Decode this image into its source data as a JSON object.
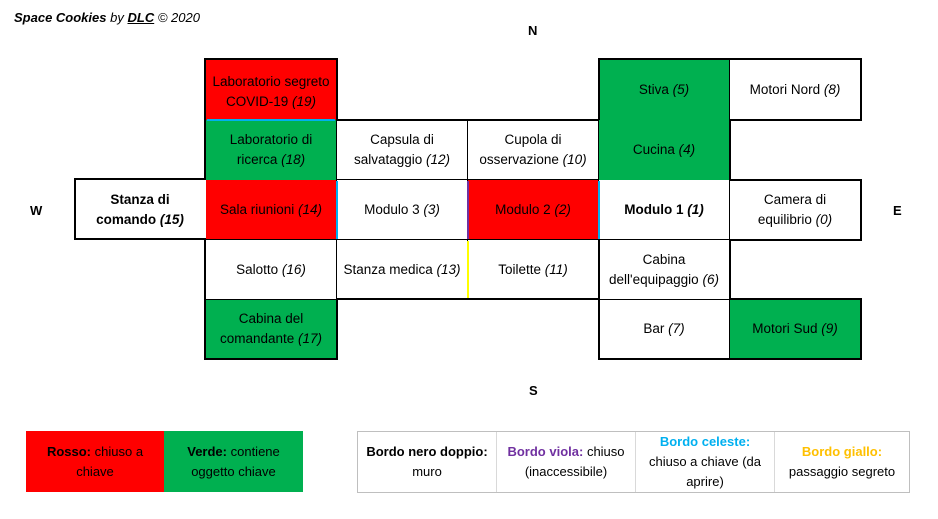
{
  "credit": {
    "title": "Space Cookies",
    "by": "by",
    "author": "DLC",
    "year": "© 2020"
  },
  "compass": {
    "north": "N",
    "south": "S",
    "west": "W",
    "east": "E"
  },
  "rooms": {
    "r19": {
      "name": "Laboratorio segreto COVID-19",
      "num": "(19)"
    },
    "r5": {
      "name": "Stiva",
      "num": "(5)"
    },
    "r8": {
      "name": "Motori Nord",
      "num": "(8)"
    },
    "r18": {
      "name": "Laboratorio di ricerca",
      "num": "(18)"
    },
    "r12": {
      "name": "Capsula di salvataggio",
      "num": "(12)"
    },
    "r10": {
      "name": "Cupola di osservazione",
      "num": "(10)"
    },
    "r4": {
      "name": "Cucina",
      "num": "(4)"
    },
    "r15": {
      "name": "Stanza di comando",
      "num": "(15)"
    },
    "r14": {
      "name": "Sala riunioni",
      "num": "(14)"
    },
    "r3": {
      "name": "Modulo 3",
      "num": "(3)"
    },
    "r2": {
      "name": "Modulo 2",
      "num": "(2)"
    },
    "r1": {
      "name": "Modulo 1",
      "num": "(1)"
    },
    "r0": {
      "name": "Camera di equilibrio",
      "num": "(0)"
    },
    "r16": {
      "name": "Salotto",
      "num": "(16)"
    },
    "r13": {
      "name": "Stanza medica",
      "num": "(13)"
    },
    "r11": {
      "name": "Toilette",
      "num": "(11)"
    },
    "r6": {
      "name": "Cabina dell'equipaggio",
      "num": "(6)"
    },
    "r17": {
      "name": "Cabina del comandante",
      "num": "(17)"
    },
    "r7": {
      "name": "Bar",
      "num": "(7)"
    },
    "r9": {
      "name": "Motori Sud",
      "num": "(9)"
    }
  },
  "colors": {
    "red": "#ff0000",
    "green": "#00b050",
    "purple": "#7030a0",
    "lightblue": "#00b0f0",
    "yellow": "#ffc000"
  },
  "legend_left": {
    "red_key": "Rosso:",
    "red_desc": "chiuso a chiave",
    "green_key": "Verde:",
    "green_desc": "contiene oggetto chiave"
  },
  "legend_right": {
    "double_key": "Bordo nero doppio:",
    "double_desc": "muro",
    "purple_key": "Bordo viola:",
    "purple_desc": "chiuso (inaccessibile)",
    "lightblue_key": "Bordo celeste:",
    "lightblue_desc": "chiuso a chiave (da aprire)",
    "yellow_key": "Bordo giallo:",
    "yellow_desc": "passaggio segreto"
  }
}
